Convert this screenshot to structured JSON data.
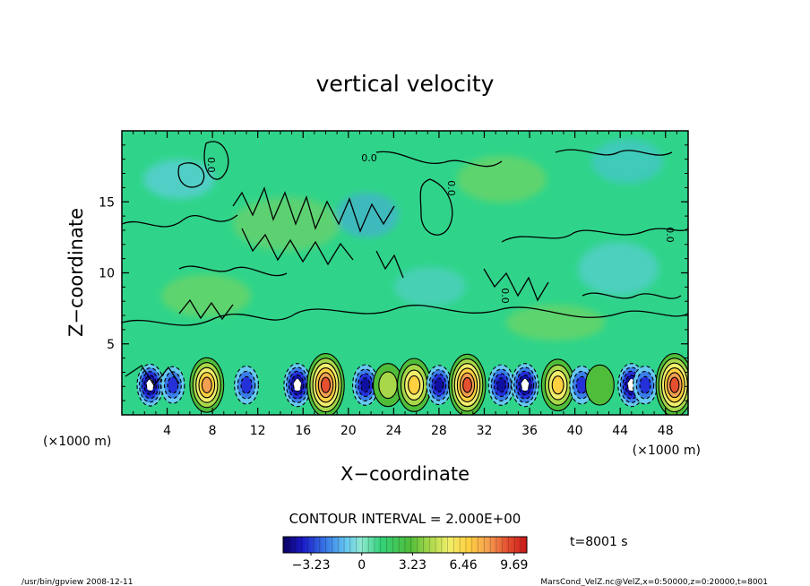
{
  "chart_data": {
    "type": "heatmap",
    "title": "vertical velocity",
    "xlabel": "X−coordinate",
    "ylabel": "Z−coordinate",
    "x_unit_left": "(×1000 m)",
    "x_unit_right": "(×1000 m)",
    "xlim": [
      0,
      50
    ],
    "ylim": [
      0,
      20
    ],
    "x_ticks": [
      4,
      8,
      12,
      16,
      20,
      24,
      28,
      32,
      36,
      40,
      44,
      48
    ],
    "y_ticks": [
      5,
      10,
      15
    ],
    "contour_interval_text": "CONTOUR INTERVAL = 2.000E+00",
    "contour_labels": [
      "0.0",
      "0.0",
      "0.0",
      "0.0",
      "0.0"
    ],
    "colorbar_ticks": [
      "−3.23",
      "0",
      "3.23",
      "6.46",
      "9.69"
    ],
    "colorbar_range": [
      -5,
      10.5
    ],
    "time_label": "t=8001 s",
    "footer_left": "/usr/bin/gpview   2008-12-11",
    "footer_right": "MarsCond_VelZ.nc@VelZ,x=0:50000,z=0:20000,t=8001",
    "near_surface_cells": [
      {
        "x": 1.2,
        "w": 0.1
      },
      {
        "x": 2.5,
        "w": -4.5
      },
      {
        "x": 4.5,
        "w": -2.5
      },
      {
        "x": 7.5,
        "w": 6.5
      },
      {
        "x": 11.0,
        "w": -3.0
      },
      {
        "x": 15.5,
        "w": -5.0
      },
      {
        "x": 18.0,
        "w": 9.5
      },
      {
        "x": 21.5,
        "w": -4.0
      },
      {
        "x": 23.5,
        "w": 2.5
      },
      {
        "x": 25.8,
        "w": 6.0
      },
      {
        "x": 28.0,
        "w": -3.5
      },
      {
        "x": 30.5,
        "w": 9.0
      },
      {
        "x": 33.5,
        "w": -4.0
      },
      {
        "x": 35.6,
        "w": -5.0
      },
      {
        "x": 38.5,
        "w": 5.5
      },
      {
        "x": 40.6,
        "w": -3.0
      },
      {
        "x": 42.2,
        "w": 1.5
      },
      {
        "x": 45.0,
        "w": -5.0
      },
      {
        "x": 46.2,
        "w": -3.0
      },
      {
        "x": 48.8,
        "w": 9.5
      }
    ]
  }
}
